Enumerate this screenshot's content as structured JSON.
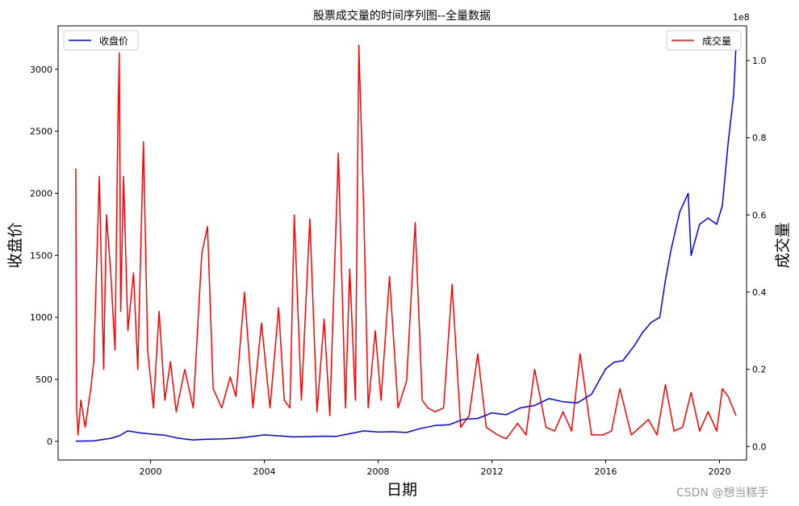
{
  "chart_data": {
    "type": "line",
    "title": "股票成交量的时间序列图--全量数据",
    "xlabel": "日期",
    "ylabel_left": "收盘价",
    "ylabel_right": "成交量",
    "right_axis_multiplier": "1e8",
    "xlim": [
      1996.75,
      2020.95
    ],
    "ylim_left": [
      -150,
      3350
    ],
    "ylim_right": [
      -0.035,
      1.09
    ],
    "x_ticks": [
      2000,
      2004,
      2008,
      2012,
      2016,
      2020
    ],
    "x_tick_labels": [
      "2000",
      "2004",
      "2008",
      "2012",
      "2016",
      "2020"
    ],
    "y_left_ticks": [
      0,
      500,
      1000,
      1500,
      2000,
      2500,
      3000
    ],
    "y_left_tick_labels": [
      "0",
      "500",
      "1000",
      "1500",
      "2000",
      "2500",
      "3000"
    ],
    "y_right_ticks": [
      0.0,
      0.2,
      0.4,
      0.6,
      0.8,
      1.0
    ],
    "y_right_tick_labels": [
      "0.0",
      "0.2",
      "0.4",
      "0.6",
      "0.8",
      "1.0"
    ],
    "legend_left": {
      "label": "收盘价",
      "position": "upper-left"
    },
    "legend_right": {
      "label": "成交量",
      "position": "upper-right"
    },
    "grid": false,
    "series": [
      {
        "name": "收盘价",
        "axis": "left",
        "color": "#0000ff",
        "x": [
          1997.37,
          1998.0,
          1998.6,
          1998.9,
          1999.2,
          1999.6,
          2000.0,
          2000.5,
          2001.0,
          2001.5,
          2002.0,
          2002.5,
          2003.0,
          2003.5,
          2004.0,
          2004.5,
          2005.0,
          2005.5,
          2006.0,
          2006.5,
          2007.0,
          2007.5,
          2008.0,
          2008.5,
          2009.0,
          2009.5,
          2010.0,
          2010.5,
          2011.0,
          2011.5,
          2012.0,
          2012.5,
          2013.0,
          2013.5,
          2014.0,
          2014.5,
          2015.0,
          2015.5,
          2016.0,
          2016.3,
          2016.6,
          2017.0,
          2017.3,
          2017.6,
          2017.9,
          2018.1,
          2018.3,
          2018.6,
          2018.9,
          2019.0,
          2019.3,
          2019.6,
          2019.9,
          2020.1,
          2020.3,
          2020.5,
          2020.58
        ],
        "y": [
          2,
          5,
          25,
          45,
          85,
          70,
          60,
          50,
          25,
          12,
          18,
          20,
          25,
          38,
          52,
          45,
          36,
          38,
          42,
          40,
          62,
          85,
          75,
          78,
          72,
          105,
          128,
          135,
          178,
          185,
          230,
          215,
          270,
          290,
          345,
          320,
          310,
          380,
          585,
          640,
          650,
          770,
          880,
          960,
          1000,
          1300,
          1550,
          1850,
          2000,
          1500,
          1750,
          1800,
          1750,
          1900,
          2400,
          2800,
          3200
        ]
      },
      {
        "name": "成交量",
        "axis": "right",
        "color": "#ff0000",
        "unit_multiplier": 100000000,
        "x": [
          1997.37,
          1997.4,
          1997.45,
          1997.55,
          1997.7,
          1997.9,
          1998.0,
          1998.2,
          1998.35,
          1998.45,
          1998.6,
          1998.75,
          1998.85,
          1998.9,
          1998.95,
          1999.05,
          1999.2,
          1999.4,
          1999.55,
          1999.75,
          1999.9,
          2000.1,
          2000.3,
          2000.5,
          2000.7,
          2000.9,
          2001.2,
          2001.5,
          2001.8,
          2002.0,
          2002.2,
          2002.5,
          2002.8,
          2003.0,
          2003.3,
          2003.6,
          2003.9,
          2004.2,
          2004.5,
          2004.7,
          2004.9,
          2005.05,
          2005.3,
          2005.6,
          2005.85,
          2006.1,
          2006.3,
          2006.6,
          2006.85,
          2007.0,
          2007.2,
          2007.32,
          2007.5,
          2007.65,
          2007.9,
          2008.1,
          2008.4,
          2008.7,
          2009.0,
          2009.3,
          2009.55,
          2009.75,
          2010.0,
          2010.3,
          2010.6,
          2010.9,
          2011.2,
          2011.5,
          2011.8,
          2012.2,
          2012.5,
          2012.9,
          2013.2,
          2013.5,
          2013.9,
          2014.2,
          2014.5,
          2014.8,
          2015.1,
          2015.5,
          2015.9,
          2016.2,
          2016.5,
          2016.9,
          2017.2,
          2017.5,
          2017.8,
          2018.1,
          2018.4,
          2018.7,
          2019.0,
          2019.3,
          2019.6,
          2019.9,
          2020.1,
          2020.3,
          2020.58
        ],
        "y": [
          0.72,
          0.1,
          0.03,
          0.12,
          0.05,
          0.15,
          0.22,
          0.7,
          0.2,
          0.6,
          0.45,
          0.25,
          0.83,
          1.02,
          0.35,
          0.7,
          0.3,
          0.45,
          0.2,
          0.79,
          0.25,
          0.1,
          0.35,
          0.12,
          0.22,
          0.09,
          0.2,
          0.1,
          0.5,
          0.57,
          0.15,
          0.1,
          0.18,
          0.13,
          0.4,
          0.1,
          0.32,
          0.1,
          0.36,
          0.12,
          0.1,
          0.6,
          0.12,
          0.59,
          0.09,
          0.33,
          0.08,
          0.76,
          0.1,
          0.46,
          0.12,
          1.04,
          0.6,
          0.1,
          0.3,
          0.12,
          0.44,
          0.1,
          0.17,
          0.58,
          0.12,
          0.1,
          0.09,
          0.1,
          0.42,
          0.05,
          0.08,
          0.24,
          0.05,
          0.03,
          0.02,
          0.06,
          0.03,
          0.2,
          0.05,
          0.04,
          0.09,
          0.04,
          0.24,
          0.03,
          0.03,
          0.04,
          0.15,
          0.03,
          0.05,
          0.07,
          0.03,
          0.16,
          0.04,
          0.05,
          0.14,
          0.04,
          0.09,
          0.04,
          0.15,
          0.13,
          0.08
        ]
      }
    ]
  },
  "watermark": "CSDN @想当糕手"
}
